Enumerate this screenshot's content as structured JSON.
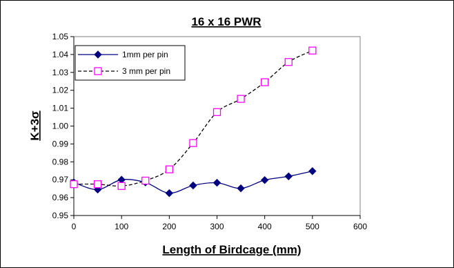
{
  "chart_data": {
    "type": "line",
    "title": "16 x 16 PWR",
    "xlabel": "Length of Birdcage (mm)",
    "ylabel": "K+3σ",
    "xlim": [
      0,
      600
    ],
    "ylim": [
      0.95,
      1.05
    ],
    "x_ticks": [
      "0",
      "100",
      "200",
      "300",
      "400",
      "500",
      "600"
    ],
    "y_ticks": [
      "0.95",
      "0.96",
      "0.97",
      "0.98",
      "0.99",
      "1.00",
      "1.01",
      "1.02",
      "1.03",
      "1.04",
      "1.05"
    ],
    "grid": false,
    "legend_position": "top-left",
    "series": [
      {
        "name": "1mm per pin",
        "color": "#000080",
        "line_style": "solid",
        "marker": "diamond",
        "x": [
          0,
          50,
          100,
          150,
          200,
          250,
          300,
          350,
          400,
          450,
          500
        ],
        "y": [
          0.9685,
          0.9645,
          0.97,
          0.9685,
          0.9625,
          0.9668,
          0.9683,
          0.9652,
          0.9698,
          0.9719,
          0.9748
        ]
      },
      {
        "name": "3 mm per pin",
        "color": "#000000",
        "marker_color": "#FF00FF",
        "line_style": "dashed",
        "marker": "square-open",
        "x": [
          0,
          50,
          100,
          150,
          200,
          250,
          300,
          350,
          400,
          450,
          500
        ],
        "y": [
          0.9675,
          0.9675,
          0.9665,
          0.9695,
          0.9758,
          0.9905,
          1.0078,
          1.0152,
          1.0245,
          1.0358,
          1.0422
        ]
      }
    ]
  }
}
